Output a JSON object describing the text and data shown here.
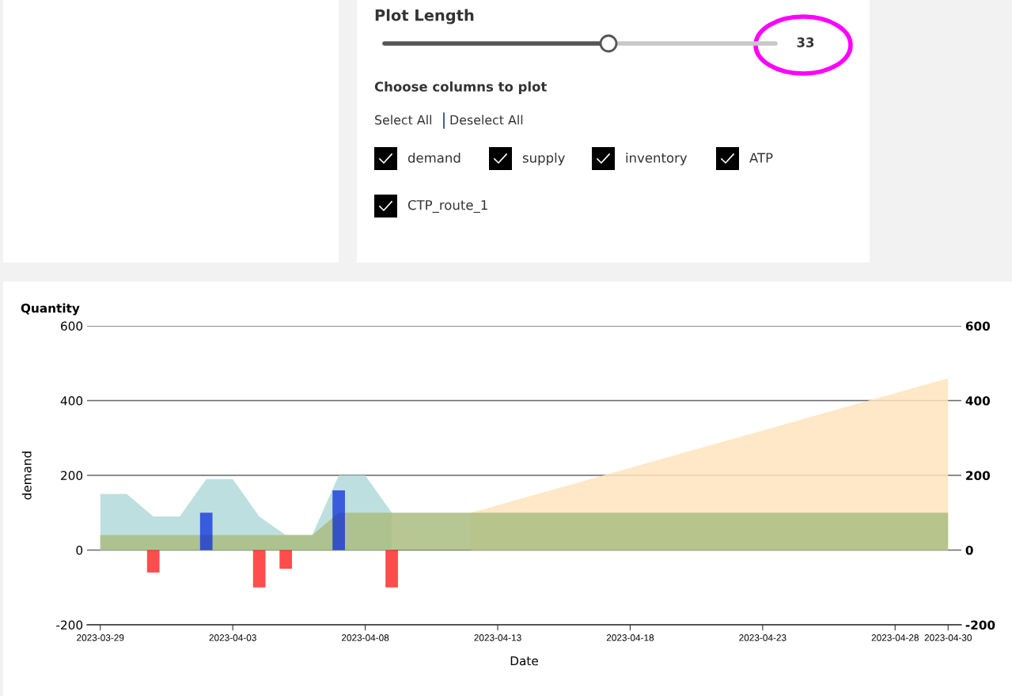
{
  "chart_data": [
    {
      "type": "other",
      "title": "Plot Length",
      "annotations": [
        "33",
        "Choose columns to plot",
        "Select All",
        "Deselect All",
        "demand",
        "supply",
        "inventory",
        "ATP",
        "CTP_route_1"
      ]
    },
    {
      "type": "bar",
      "title": "Quantity",
      "xlabel": "Date",
      "ylabel": "demand",
      "series": [
        {
          "type": "area",
          "color": "#ffe4bd",
          "x": [
            "2023-04-12",
            "2023-04-30"
          ],
          "values": [
            100,
            460
          ]
        },
        {
          "type": "area",
          "color": "#b3d9d9",
          "x": [
            "2023-03-29",
            "2023-03-30",
            "2023-03-31",
            "2023-04-01",
            "2023-04-02",
            "2023-04-03",
            "2023-04-04",
            "2023-04-05",
            "2023-04-06",
            "2023-04-07",
            "2023-04-08",
            "2023-04-09"
          ],
          "values": [
            150,
            150,
            90,
            90,
            190,
            190,
            90,
            40,
            40,
            200,
            200,
            100
          ]
        },
        {
          "type": "area",
          "color": "#aabd80",
          "x": [
            "2023-03-29",
            "2023-04-06",
            "2023-04-07",
            "2023-04-30"
          ],
          "values": [
            40,
            40,
            100,
            100
          ]
        },
        {
          "type": "bar",
          "color": "#ff0000",
          "x": [
            "2023-03-31",
            "2023-04-04",
            "2023-04-05",
            "2023-04-09"
          ],
          "values": [
            -60,
            -100,
            -50,
            -100
          ]
        },
        {
          "type": "bar",
          "color": "#0022dd",
          "x": [
            "2023-04-02",
            "2023-04-07"
          ],
          "values": [
            100,
            160
          ]
        }
      ],
      "xlim": [
        "2023-03-28T12:00",
        "2023-04-30T12:00"
      ],
      "xticks": [
        "2023-03-29",
        "2023-04-03",
        "2023-04-08",
        "2023-04-13",
        "2023-04-18",
        "2023-04-23",
        "2023-04-28",
        "2023-04-30"
      ],
      "ylim": [
        -200,
        600
      ],
      "yticks": [
        -200,
        0,
        200,
        400,
        600
      ],
      "y2lim": [
        -200,
        600
      ],
      "y2ticks": [
        -200,
        0,
        200,
        400,
        600
      ],
      "grid": "y",
      "legend": false
    }
  ]
}
